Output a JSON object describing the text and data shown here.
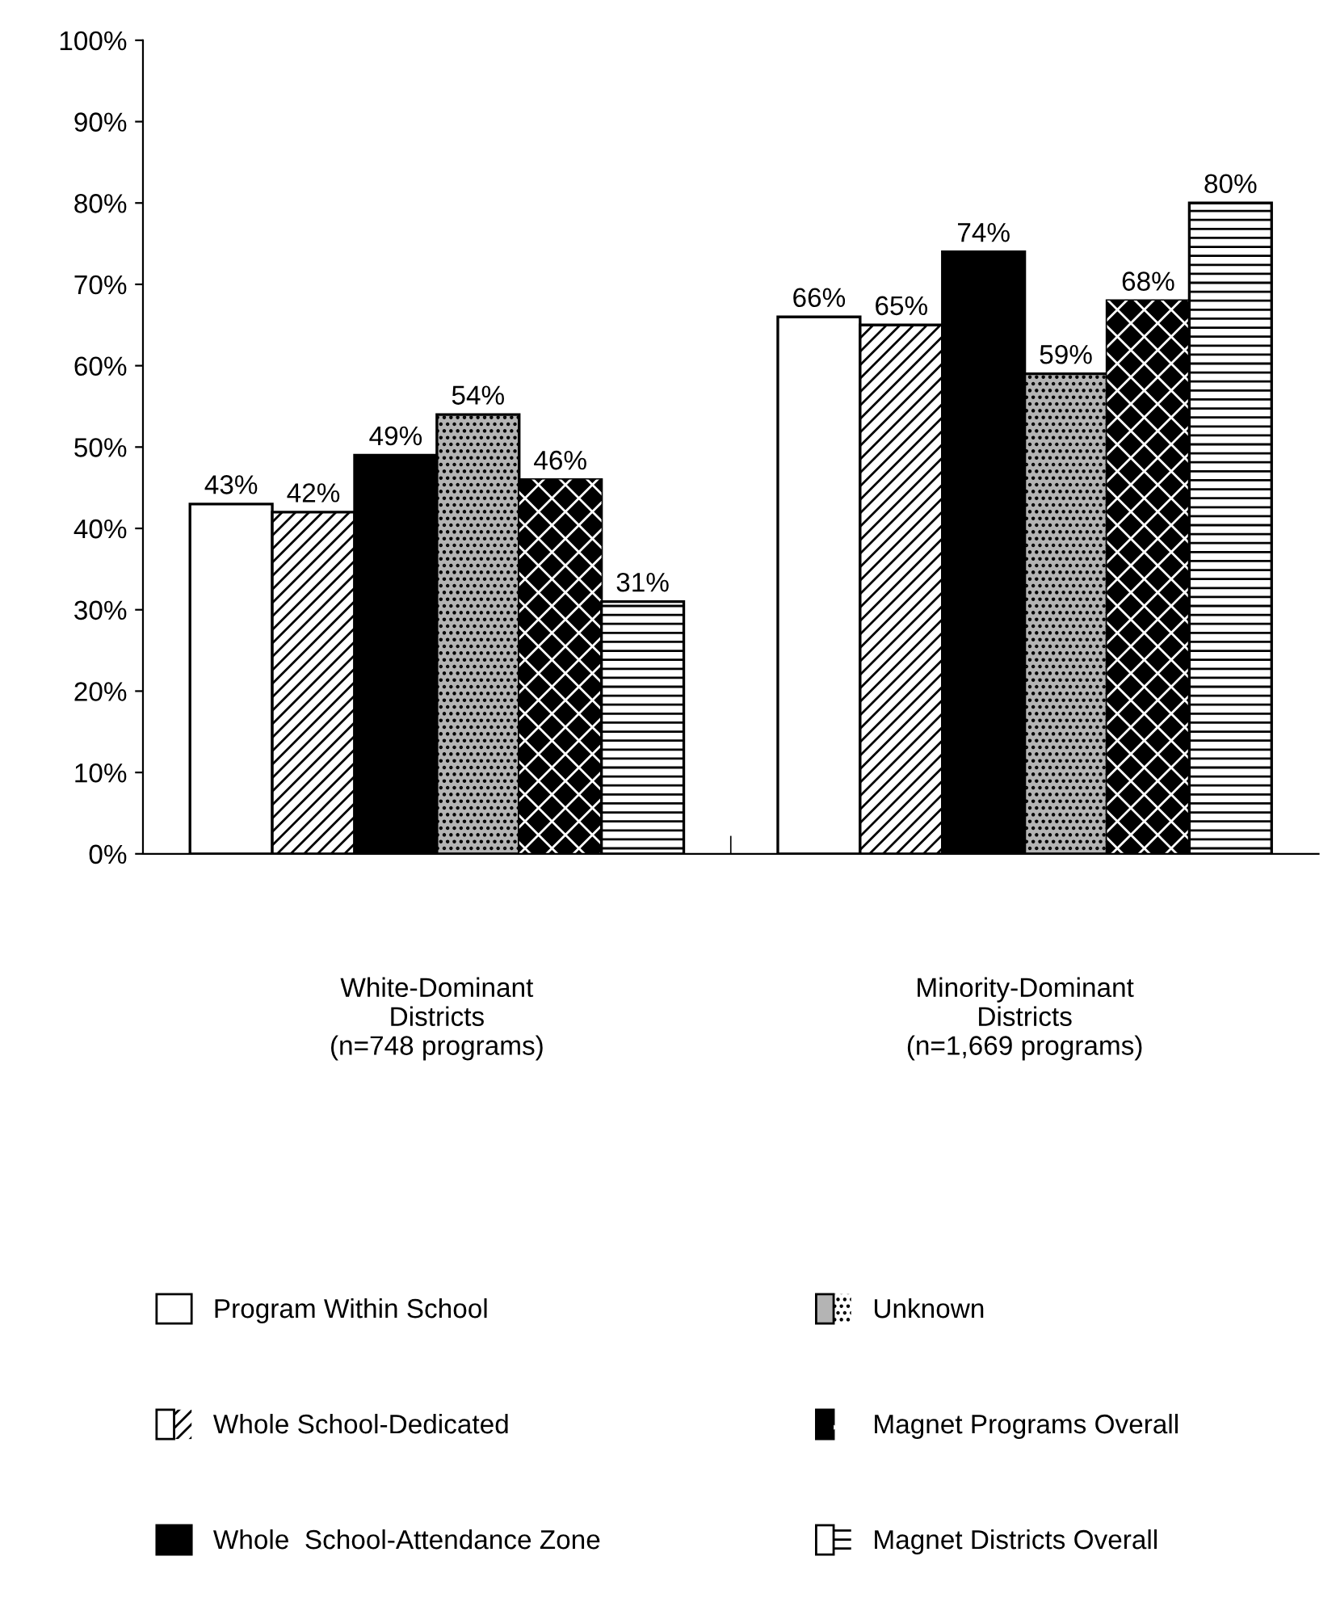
{
  "chart_data": {
    "type": "bar",
    "categories": [
      "White-Dominant\nDistricts\n(n=748 programs)",
      "Minority-Dominant\nDistricts\n(n=1,669 programs)"
    ],
    "series": [
      {
        "name": "Program Within School",
        "color": "#ffffff",
        "values": [
          43,
          66
        ],
        "value_labels": [
          "43%",
          "66%"
        ]
      },
      {
        "name": "Whole School-Dedicated",
        "color": "#ffffff",
        "values": [
          42,
          65
        ],
        "value_labels": [
          "42%",
          "65%"
        ]
      },
      {
        "name": "Whole  School-Attendance Zone",
        "color": "#000000",
        "values": [
          49,
          74
        ],
        "value_labels": [
          "49%",
          "74%"
        ]
      },
      {
        "name": "Unknown",
        "color": "#b4b4b4",
        "values": [
          54,
          59
        ],
        "value_labels": [
          "54%",
          "59%"
        ]
      },
      {
        "name": "Magnet Programs Overall",
        "color": "#000000",
        "values": [
          46,
          68
        ],
        "value_labels": [
          "46%",
          "68%"
        ]
      },
      {
        "name": "Magnet Districts Overall",
        "color": "#ffffff",
        "values": [
          31,
          80
        ],
        "value_labels": [
          "31%",
          "80%"
        ]
      }
    ],
    "ylim": [
      0,
      100
    ],
    "yticks": [
      {
        "value": 0,
        "label": "0%"
      },
      {
        "value": 10,
        "label": "10%"
      },
      {
        "value": 20,
        "label": "20%"
      },
      {
        "value": 30,
        "label": "30%"
      },
      {
        "value": 40,
        "label": "40%"
      },
      {
        "value": 50,
        "label": "50%"
      },
      {
        "value": 60,
        "label": "60%"
      },
      {
        "value": 70,
        "label": "70%"
      },
      {
        "value": 80,
        "label": "80%"
      },
      {
        "value": 90,
        "label": "90%"
      },
      {
        "value": 100,
        "label": "100%"
      }
    ],
    "grid": false,
    "legend": "bottom"
  }
}
